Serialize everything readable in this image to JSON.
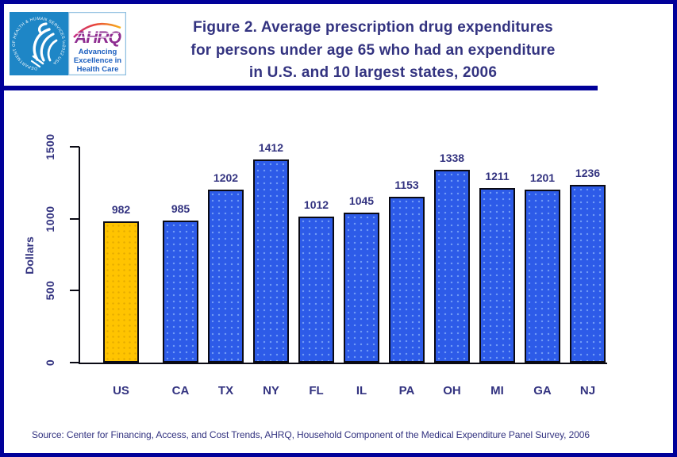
{
  "page": {
    "border_color": "#000099",
    "background": "#FFFFFF"
  },
  "header": {
    "logo": {
      "hhs_ring_text": "DEPARTMENT OF HEALTH & HUMAN SERVICES • USA",
      "ahrq_acronym": "AHRQ",
      "tagline_lines": [
        "Advancing",
        "Excellence in",
        "Health Care"
      ],
      "colors": {
        "hhs_blue": "#1E86C6",
        "ahrq_purple": "#8E2C90",
        "tagline_blue": "#1C5FBF"
      }
    },
    "title_lines": [
      "Figure 2. Average prescription drug expenditures",
      "for persons under age 65 who had an expenditure",
      "in U.S. and 10 largest states, 2006"
    ],
    "title_color": "#333380"
  },
  "chart_data": {
    "type": "bar",
    "categories": [
      "US",
      "CA",
      "TX",
      "NY",
      "FL",
      "IL",
      "PA",
      "OH",
      "MI",
      "GA",
      "NJ"
    ],
    "values": [
      982,
      985,
      1202,
      1412,
      1012,
      1045,
      1153,
      1338,
      1211,
      1201,
      1236
    ],
    "title": "",
    "xlabel": "",
    "ylabel": "Dollars",
    "yticks": [
      0,
      500,
      1000,
      1500
    ],
    "ylim": [
      0,
      1500
    ],
    "grid": false,
    "legend": "none",
    "highlight_category": "US",
    "colors": {
      "us_bar": "#FFC400",
      "state_bar": "#2D5BE8",
      "label_text": "#333380",
      "axis": "#000000"
    }
  },
  "footer": {
    "source": "Source: Center for Financing, Access, and Cost Trends, AHRQ, Household Component of the Medical Expenditure Panel Survey, 2006"
  }
}
